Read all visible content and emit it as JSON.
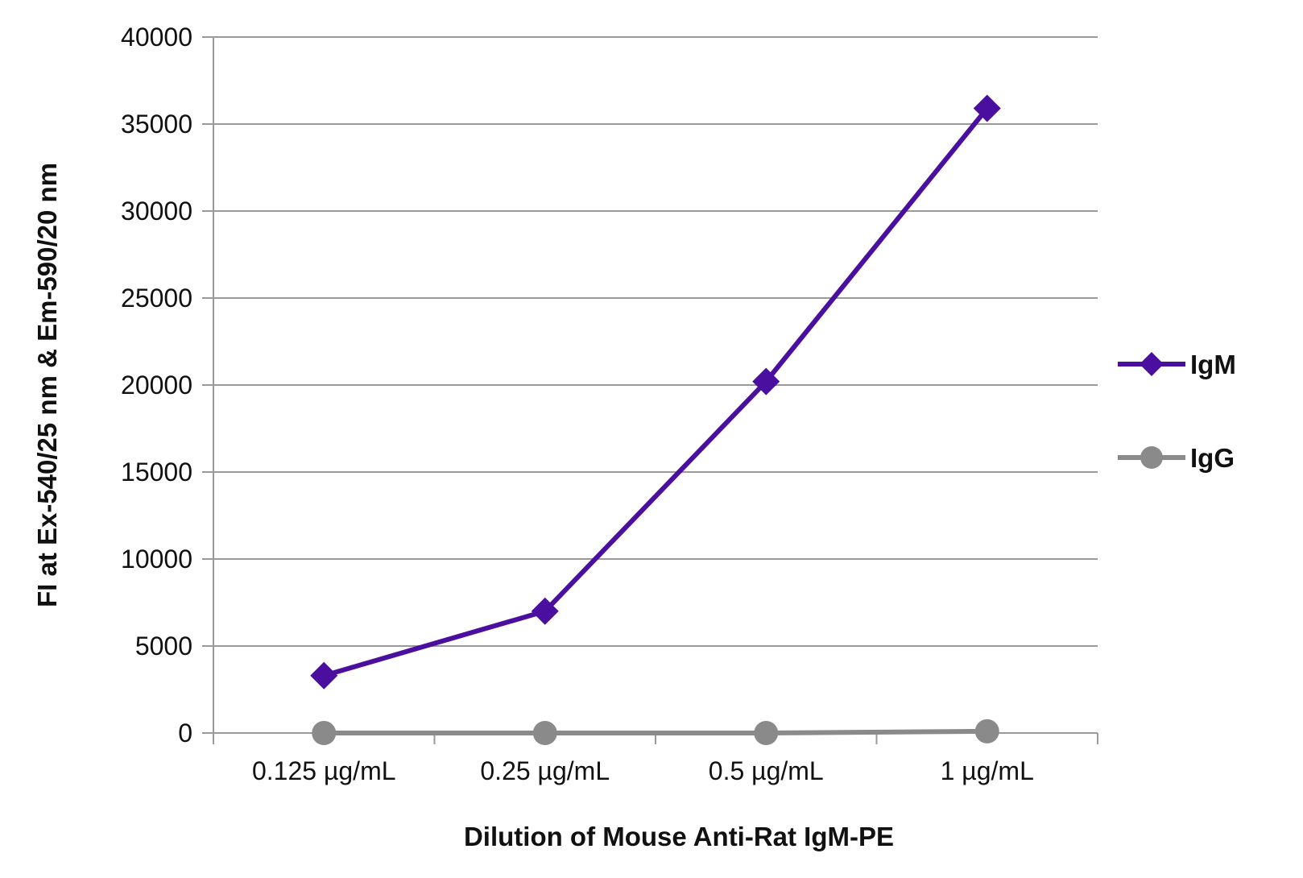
{
  "chart_data": {
    "type": "line",
    "categories": [
      "0.125 µg/mL",
      "0.25 µg/mL",
      "0.5 µg/mL",
      "1 µg/mL"
    ],
    "series": [
      {
        "name": "IgM",
        "values": [
          3300,
          7000,
          20200,
          35900
        ],
        "color": "#4b0fa0",
        "marker": "diamond"
      },
      {
        "name": "IgG",
        "values": [
          0,
          0,
          0,
          100
        ],
        "color": "#8a8a8a",
        "marker": "circle"
      }
    ],
    "xlabel": "Dilution of Mouse Anti-Rat IgM-PE",
    "ylabel": "FI at Ex-540/25 nm & Em-590/20 nm",
    "ylim": [
      0,
      40000
    ],
    "yticks": [
      0,
      5000,
      10000,
      15000,
      20000,
      25000,
      30000,
      35000,
      40000
    ],
    "grid": true,
    "legend_position": "right"
  }
}
